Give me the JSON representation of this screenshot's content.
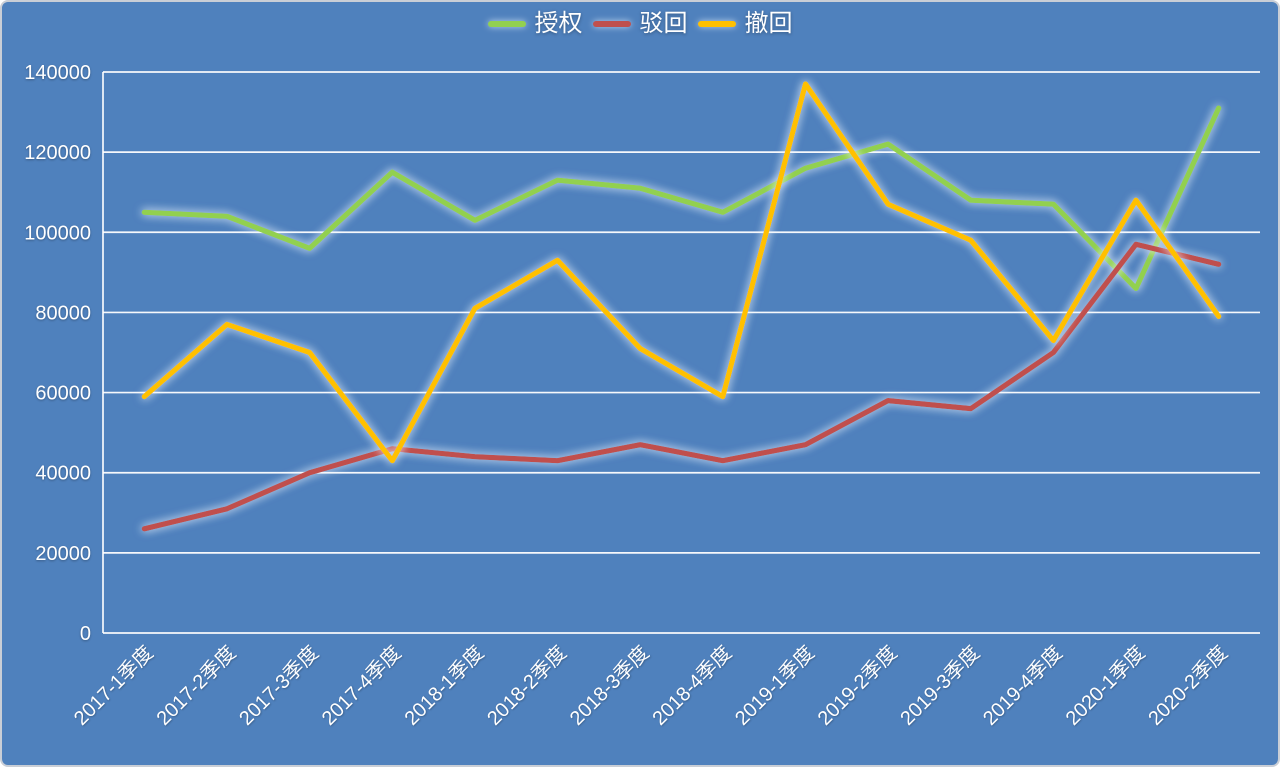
{
  "chart_data": {
    "type": "line",
    "title": "",
    "categories": [
      "2017-1季度",
      "2017-2季度",
      "2017-3季度",
      "2017-4季度",
      "2018-1季度",
      "2018-2季度",
      "2018-3季度",
      "2018-4季度",
      "2019-1季度",
      "2019-2季度",
      "2019-3季度",
      "2019-4季度",
      "2020-1季度",
      "2020-2季度"
    ],
    "series": [
      {
        "name": "授权",
        "color": "#92d050",
        "values": [
          105000,
          104000,
          96000,
          115000,
          103000,
          113000,
          111000,
          105000,
          116000,
          122000,
          108000,
          107000,
          86000,
          131000
        ]
      },
      {
        "name": "驳回",
        "color": "#c0504d",
        "values": [
          26000,
          31000,
          40000,
          46000,
          44000,
          43000,
          47000,
          43000,
          47000,
          58000,
          56000,
          70000,
          97000,
          92000
        ]
      },
      {
        "name": "撤回",
        "color": "#ffc000",
        "values": [
          59000,
          77000,
          70000,
          43000,
          81000,
          93000,
          71000,
          59000,
          137000,
          107000,
          98000,
          73000,
          108000,
          79000
        ]
      }
    ],
    "xlabel": "",
    "ylabel": "",
    "ylim": [
      0,
      140000
    ],
    "yticks": [
      0,
      20000,
      40000,
      60000,
      80000,
      100000,
      120000,
      140000
    ],
    "grid": true,
    "legend_position": "top-center",
    "background_color": "#4f81bd",
    "gridline_color": "#ffffff",
    "text_color": "#ffffff",
    "x_label_rotation_deg": -45
  }
}
